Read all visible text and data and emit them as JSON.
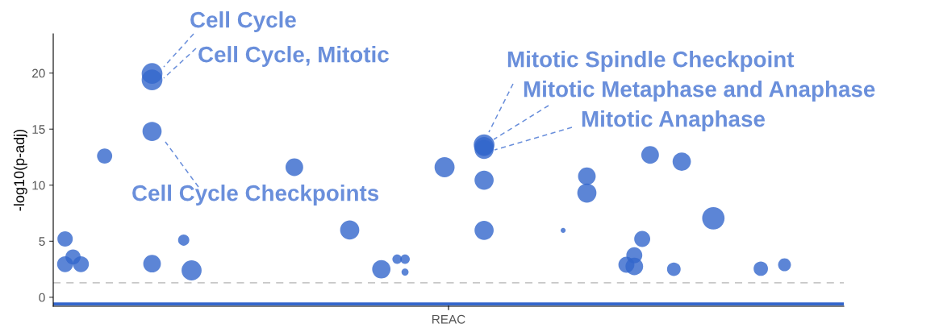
{
  "chart_data": {
    "type": "bubble",
    "ylabel": "-log10(p-adj)",
    "xlabel": "REAC",
    "categories": [
      null,
      null,
      null,
      null,
      null,
      null,
      null,
      null,
      null,
      null,
      null,
      null,
      null,
      null,
      null,
      null,
      null,
      null,
      null,
      null,
      null,
      null,
      null,
      null,
      null,
      null,
      null,
      null,
      null,
      null,
      null,
      null,
      null,
      null,
      null,
      null,
      null,
      null,
      null,
      null,
      null,
      null,
      null,
      null,
      null,
      null,
      null,
      null,
      null,
      null,
      null,
      null,
      null,
      null,
      null,
      null,
      null,
      null,
      null,
      null,
      null,
      null,
      null,
      null,
      null,
      null,
      null,
      null,
      null,
      null,
      null,
      null,
      null,
      null,
      null,
      null,
      null,
      null,
      null,
      null,
      null,
      null,
      null,
      null,
      null,
      null,
      null,
      null,
      null,
      null,
      null,
      null,
      null,
      null,
      null,
      null,
      null,
      null,
      null,
      null
    ],
    "series": [
      {
        "color": "#3366cc",
        "values": [
          null,
          5.2,
          3.6,
          2.95,
          null,
          null,
          12.6,
          null,
          null,
          null,
          null,
          null,
          19.96,
          null,
          null,
          null,
          5.1,
          2.4,
          null,
          null,
          null,
          null,
          null,
          null,
          null,
          null,
          null,
          null,
          null,
          null,
          11.6,
          null,
          null,
          null,
          null,
          null,
          null,
          6.0,
          null,
          null,
          null,
          2.5,
          null,
          3.4,
          3.4,
          null,
          null,
          null,
          null,
          11.6,
          null,
          null,
          null,
          null,
          13.6,
          null,
          null,
          null,
          null,
          null,
          null,
          null,
          null,
          null,
          5.97,
          null,
          null,
          10.8,
          null,
          null,
          null,
          null,
          2.9,
          3.75,
          5.2,
          12.7,
          null,
          null,
          2.5,
          12.1,
          null,
          null,
          null,
          7.05,
          null,
          null,
          null,
          null,
          null,
          2.55,
          null,
          null,
          2.9,
          null,
          null,
          null,
          null,
          null,
          null,
          null
        ],
        "sizes": [
          null,
          0.47,
          0.46,
          0.51,
          null,
          null,
          0.46,
          null,
          null,
          null,
          null,
          null,
          0.86,
          null,
          null,
          null,
          0.25,
          0.8,
          null,
          null,
          null,
          null,
          null,
          null,
          null,
          null,
          null,
          null,
          null,
          null,
          0.62,
          null,
          null,
          null,
          null,
          null,
          null,
          0.73,
          null,
          null,
          null,
          0.67,
          null,
          0.18,
          0.18,
          null,
          null,
          null,
          null,
          0.8,
          null,
          null,
          null,
          null,
          0.86,
          null,
          null,
          null,
          null,
          null,
          null,
          null,
          null,
          null,
          0.05,
          null,
          null,
          0.62,
          null,
          null,
          null,
          null,
          0.51,
          0.51,
          0.51,
          0.62,
          null,
          null,
          0.37,
          0.67,
          null,
          null,
          null,
          1,
          null,
          null,
          null,
          null,
          null,
          0.41,
          null,
          null,
          0.33,
          null,
          null,
          null,
          null,
          null,
          null,
          null
        ]
      },
      {
        "color": "#3366cc",
        "values": [
          null,
          2.95,
          null,
          null,
          null,
          null,
          null,
          null,
          null,
          null,
          null,
          null,
          19.4,
          null,
          null,
          null,
          null,
          null,
          null,
          null,
          null,
          null,
          null,
          null,
          null,
          null,
          null,
          null,
          null,
          null,
          null,
          null,
          null,
          null,
          null,
          null,
          null,
          null,
          null,
          null,
          null,
          null,
          null,
          null,
          2.25,
          null,
          null,
          null,
          null,
          null,
          null,
          null,
          null,
          null,
          13.45,
          null,
          null,
          null,
          null,
          null,
          null,
          null,
          null,
          null,
          null,
          null,
          null,
          9.3,
          null,
          null,
          null,
          null,
          null,
          2.75,
          null,
          null,
          null,
          null,
          null,
          null,
          null,
          null,
          null,
          null,
          null,
          null,
          null,
          null,
          null,
          null,
          null,
          null,
          null,
          null,
          null,
          null,
          null,
          null,
          null,
          null
        ],
        "sizes": [
          null,
          0.51,
          null,
          null,
          null,
          null,
          null,
          null,
          null,
          null,
          null,
          null,
          0.86,
          null,
          null,
          null,
          null,
          null,
          null,
          null,
          null,
          null,
          null,
          null,
          null,
          null,
          null,
          null,
          null,
          null,
          null,
          null,
          null,
          null,
          null,
          null,
          null,
          null,
          null,
          null,
          null,
          null,
          null,
          null,
          0.1,
          null,
          null,
          null,
          null,
          null,
          null,
          null,
          null,
          null,
          0.73,
          null,
          null,
          null,
          null,
          null,
          null,
          null,
          null,
          null,
          null,
          null,
          null,
          0.73,
          null,
          null,
          null,
          null,
          null,
          0.62,
          null,
          null,
          null,
          null,
          null,
          null,
          null,
          null,
          null,
          null,
          null,
          null,
          null,
          null,
          null,
          null,
          null,
          null,
          null,
          null,
          null,
          null,
          null,
          null,
          null,
          null
        ]
      },
      {
        "color": "#3366cc",
        "values": [
          null,
          null,
          null,
          null,
          null,
          null,
          null,
          null,
          null,
          null,
          null,
          null,
          14.8,
          null,
          null,
          null,
          null,
          null,
          null,
          null,
          null,
          null,
          null,
          null,
          null,
          null,
          null,
          null,
          null,
          null,
          null,
          null,
          null,
          null,
          null,
          null,
          null,
          null,
          null,
          null,
          null,
          null,
          null,
          null,
          null,
          null,
          null,
          null,
          null,
          null,
          null,
          null,
          null,
          null,
          13.2,
          null,
          null,
          null,
          null,
          null,
          null,
          null,
          null,
          null,
          null,
          null,
          null,
          null,
          null,
          null,
          null,
          null,
          null,
          null,
          null,
          null,
          null,
          null,
          null,
          null,
          null,
          null,
          null,
          null,
          null,
          null,
          null,
          null,
          null,
          null,
          null,
          null,
          null,
          null,
          null,
          null,
          null,
          null,
          null,
          null
        ],
        "sizes": [
          null,
          null,
          null,
          null,
          null,
          null,
          null,
          null,
          null,
          null,
          null,
          null,
          0.73,
          null,
          null,
          null,
          null,
          null,
          null,
          null,
          null,
          null,
          null,
          null,
          null,
          null,
          null,
          null,
          null,
          null,
          null,
          null,
          null,
          null,
          null,
          null,
          null,
          null,
          null,
          null,
          null,
          null,
          null,
          null,
          null,
          null,
          null,
          null,
          null,
          null,
          null,
          null,
          null,
          null,
          0.73,
          null,
          null,
          null,
          null,
          null,
          null,
          null,
          null,
          null,
          null,
          null,
          null,
          null,
          null,
          null,
          null,
          null,
          null,
          null,
          null,
          null,
          null,
          null,
          null,
          null,
          null,
          null,
          null,
          null,
          null,
          null,
          null,
          null,
          null,
          null,
          null,
          null,
          null,
          null,
          null,
          null,
          null,
          null,
          null,
          null
        ]
      },
      {
        "color": "#3366cc",
        "values": [
          null,
          null,
          null,
          null,
          null,
          null,
          null,
          null,
          null,
          null,
          null,
          null,
          3.0,
          null,
          null,
          null,
          null,
          null,
          null,
          null,
          null,
          null,
          null,
          null,
          null,
          null,
          null,
          null,
          null,
          null,
          null,
          null,
          null,
          null,
          null,
          null,
          null,
          null,
          null,
          null,
          null,
          null,
          null,
          null,
          null,
          null,
          null,
          null,
          null,
          null,
          null,
          null,
          null,
          null,
          10.45,
          null,
          null,
          null,
          null,
          null,
          null,
          null,
          null,
          null,
          null,
          null,
          null,
          null,
          null,
          null,
          null,
          null,
          null,
          null,
          null,
          null,
          null,
          null,
          null,
          null,
          null,
          null,
          null,
          null,
          null,
          null,
          null,
          null,
          null,
          null,
          null,
          null,
          null,
          null,
          null,
          null,
          null,
          null,
          null,
          null
        ],
        "sizes": [
          null,
          null,
          null,
          null,
          null,
          null,
          null,
          null,
          null,
          null,
          null,
          null,
          0.62,
          null,
          null,
          null,
          null,
          null,
          null,
          null,
          null,
          null,
          null,
          null,
          null,
          null,
          null,
          null,
          null,
          null,
          null,
          null,
          null,
          null,
          null,
          null,
          null,
          null,
          null,
          null,
          null,
          null,
          null,
          null,
          null,
          null,
          null,
          null,
          null,
          null,
          null,
          null,
          null,
          null,
          0.73,
          null,
          null,
          null,
          null,
          null,
          null,
          null,
          null,
          null,
          null,
          null,
          null,
          null,
          null,
          null,
          null,
          null,
          null,
          null,
          null,
          null,
          null,
          null,
          null,
          null,
          null,
          null,
          null,
          null,
          null,
          null,
          null,
          null,
          null,
          null,
          null,
          null,
          null,
          null,
          null,
          null,
          null,
          null,
          null,
          null
        ]
      },
      {
        "color": "#3366cc",
        "values": [
          null,
          null,
          null,
          null,
          null,
          null,
          null,
          null,
          null,
          null,
          null,
          null,
          null,
          null,
          null,
          null,
          null,
          null,
          null,
          null,
          null,
          null,
          null,
          null,
          null,
          null,
          null,
          null,
          null,
          null,
          null,
          null,
          null,
          null,
          null,
          null,
          null,
          null,
          null,
          null,
          null,
          null,
          null,
          null,
          null,
          null,
          null,
          null,
          null,
          null,
          null,
          null,
          null,
          null,
          5.97,
          null,
          null,
          null,
          null,
          null,
          null,
          null,
          null,
          null,
          null,
          null,
          null,
          null,
          null,
          null,
          null,
          null,
          null,
          null,
          null,
          null,
          null,
          null,
          null,
          null,
          null,
          null,
          null,
          null,
          null,
          null,
          null,
          null,
          null,
          null,
          null,
          null,
          null,
          null,
          null,
          null,
          null,
          null,
          null,
          null
        ],
        "sizes": [
          null,
          null,
          null,
          null,
          null,
          null,
          null,
          null,
          null,
          null,
          null,
          null,
          null,
          null,
          null,
          null,
          null,
          null,
          null,
          null,
          null,
          null,
          null,
          null,
          null,
          null,
          null,
          null,
          null,
          null,
          null,
          null,
          null,
          null,
          null,
          null,
          null,
          null,
          null,
          null,
          null,
          null,
          null,
          null,
          null,
          null,
          null,
          null,
          null,
          null,
          null,
          null,
          null,
          null,
          0.73,
          null,
          null,
          null,
          null,
          null,
          null,
          null,
          null,
          null,
          null,
          null,
          null,
          null,
          null,
          null,
          null,
          null,
          null,
          null,
          null,
          null,
          null,
          null,
          null,
          null,
          null,
          null,
          null,
          null,
          null,
          null,
          null,
          null,
          null,
          null,
          null,
          null,
          null,
          null,
          null,
          null,
          null,
          null,
          null,
          null
        ]
      }
    ],
    "ylim": [
      -0.8,
      23.5
    ],
    "yticks": [
      0,
      5,
      10,
      15,
      20
    ],
    "grid": false,
    "ref_lines": [
      {
        "axis": "y",
        "value": 1.3,
        "color": "#c8c8c8",
        "line_style": "dashed"
      }
    ],
    "bands": [
      {
        "axis": "y",
        "from": -0.72,
        "to": -0.45,
        "color": "#3366cc"
      }
    ],
    "annotations": [
      "Cell Cycle",
      "Cell Cycle, Mitotic",
      "Cell Cycle Checkpoints",
      "Mitotic Spindle Checkpoint",
      "Mitotic Metaphase and Anaphase",
      "Mitotic Anaphase"
    ]
  }
}
